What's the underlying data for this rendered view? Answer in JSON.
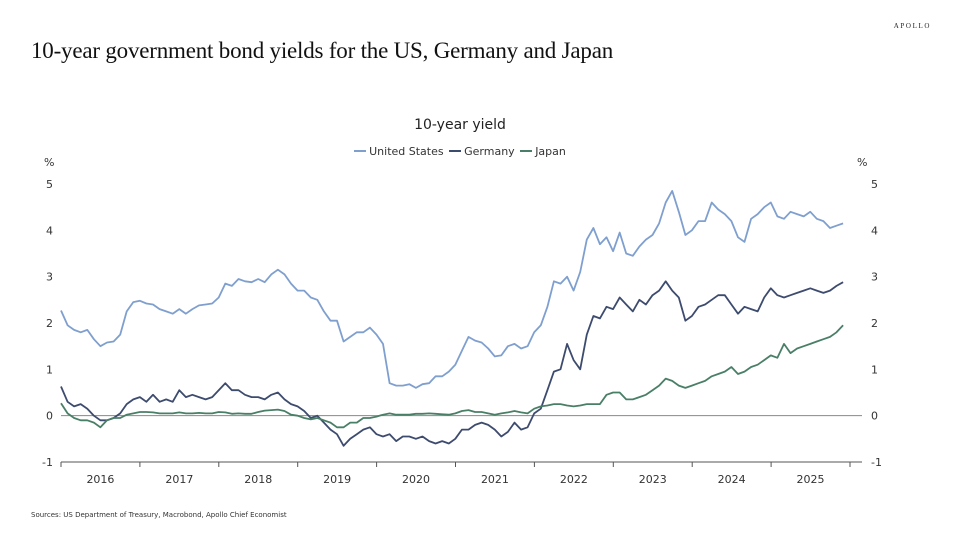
{
  "brand": "APOLLO",
  "title": "10-year government bond yields for the US, Germany and Japan",
  "source": "Sources: US Department of Treasury, Macrobond, Apollo Chief Economist",
  "chart_data": {
    "type": "line",
    "title": "10-year yield",
    "ylabel_left": "%",
    "ylabel_right": "%",
    "xlabel": "",
    "ylim": [
      -1,
      5
    ],
    "xlim": [
      2016.0,
      2026.0
    ],
    "yticks": [
      -1,
      0,
      1,
      2,
      3,
      4,
      5
    ],
    "xtick_labels": [
      "2016",
      "2017",
      "2018",
      "2019",
      "2020",
      "2021",
      "2022",
      "2023",
      "2024",
      "2025"
    ],
    "grid": false,
    "zero_line": true,
    "legend_position": "top-center",
    "x_frequency": "monthly",
    "x_start": 2016.0,
    "x_step": 0.0833,
    "series": [
      {
        "name": "United States",
        "color": "#7f9fcf",
        "values": [
          2.27,
          1.95,
          1.85,
          1.8,
          1.85,
          1.65,
          1.5,
          1.58,
          1.6,
          1.75,
          2.25,
          2.45,
          2.48,
          2.42,
          2.4,
          2.3,
          2.25,
          2.2,
          2.3,
          2.2,
          2.3,
          2.38,
          2.4,
          2.42,
          2.55,
          2.85,
          2.8,
          2.95,
          2.9,
          2.88,
          2.95,
          2.88,
          3.05,
          3.15,
          3.05,
          2.85,
          2.7,
          2.7,
          2.55,
          2.5,
          2.25,
          2.05,
          2.05,
          1.6,
          1.7,
          1.8,
          1.8,
          1.9,
          1.75,
          1.55,
          0.7,
          0.65,
          0.65,
          0.68,
          0.6,
          0.68,
          0.7,
          0.85,
          0.85,
          0.95,
          1.1,
          1.4,
          1.7,
          1.62,
          1.58,
          1.45,
          1.28,
          1.3,
          1.5,
          1.55,
          1.45,
          1.5,
          1.8,
          1.95,
          2.35,
          2.9,
          2.85,
          3.0,
          2.7,
          3.1,
          3.8,
          4.05,
          3.7,
          3.85,
          3.55,
          3.95,
          3.5,
          3.45,
          3.65,
          3.8,
          3.9,
          4.15,
          4.6,
          4.85,
          4.4,
          3.9,
          4.0,
          4.2,
          4.2,
          4.6,
          4.45,
          4.35,
          4.2,
          3.85,
          3.75,
          4.25,
          4.35,
          4.5,
          4.6,
          4.3,
          4.25,
          4.4,
          4.35,
          4.3,
          4.4,
          4.25,
          4.2,
          4.05,
          4.1,
          4.15
        ]
      },
      {
        "name": "Germany",
        "color": "#3d4b6e",
        "values": [
          0.63,
          0.3,
          0.2,
          0.25,
          0.15,
          0.0,
          -0.1,
          -0.1,
          -0.05,
          0.05,
          0.25,
          0.35,
          0.4,
          0.3,
          0.45,
          0.3,
          0.35,
          0.3,
          0.55,
          0.4,
          0.45,
          0.4,
          0.35,
          0.4,
          0.55,
          0.7,
          0.55,
          0.55,
          0.45,
          0.4,
          0.4,
          0.35,
          0.45,
          0.5,
          0.35,
          0.25,
          0.2,
          0.1,
          -0.05,
          0.0,
          -0.15,
          -0.3,
          -0.4,
          -0.65,
          -0.5,
          -0.4,
          -0.3,
          -0.25,
          -0.4,
          -0.45,
          -0.4,
          -0.55,
          -0.45,
          -0.45,
          -0.5,
          -0.45,
          -0.55,
          -0.6,
          -0.55,
          -0.6,
          -0.5,
          -0.3,
          -0.3,
          -0.2,
          -0.15,
          -0.2,
          -0.3,
          -0.45,
          -0.35,
          -0.15,
          -0.3,
          -0.25,
          0.05,
          0.15,
          0.55,
          0.95,
          1.0,
          1.55,
          1.2,
          1.0,
          1.75,
          2.15,
          2.1,
          2.35,
          2.3,
          2.55,
          2.4,
          2.25,
          2.5,
          2.4,
          2.6,
          2.7,
          2.9,
          2.7,
          2.55,
          2.05,
          2.15,
          2.35,
          2.4,
          2.5,
          2.6,
          2.6,
          2.4,
          2.2,
          2.35,
          2.3,
          2.25,
          2.55,
          2.75,
          2.6,
          2.55,
          2.6,
          2.65,
          2.7,
          2.75,
          2.7,
          2.65,
          2.7,
          2.8,
          2.88
        ]
      },
      {
        "name": "Japan",
        "color": "#4a7f67",
        "values": [
          0.27,
          0.05,
          -0.05,
          -0.1,
          -0.1,
          -0.15,
          -0.25,
          -0.1,
          -0.05,
          -0.05,
          0.02,
          0.05,
          0.08,
          0.08,
          0.07,
          0.05,
          0.05,
          0.05,
          0.07,
          0.05,
          0.05,
          0.06,
          0.05,
          0.05,
          0.08,
          0.07,
          0.04,
          0.05,
          0.04,
          0.04,
          0.08,
          0.11,
          0.12,
          0.13,
          0.1,
          0.02,
          0.0,
          -0.05,
          -0.08,
          -0.05,
          -0.1,
          -0.15,
          -0.25,
          -0.25,
          -0.15,
          -0.15,
          -0.05,
          -0.05,
          -0.02,
          0.02,
          0.05,
          0.02,
          0.02,
          0.02,
          0.04,
          0.04,
          0.05,
          0.04,
          0.03,
          0.02,
          0.05,
          0.1,
          0.12,
          0.08,
          0.08,
          0.05,
          0.02,
          0.05,
          0.07,
          0.1,
          0.07,
          0.05,
          0.15,
          0.2,
          0.22,
          0.25,
          0.25,
          0.22,
          0.2,
          0.22,
          0.25,
          0.25,
          0.25,
          0.45,
          0.5,
          0.5,
          0.35,
          0.35,
          0.4,
          0.45,
          0.55,
          0.65,
          0.8,
          0.75,
          0.65,
          0.6,
          0.65,
          0.7,
          0.75,
          0.85,
          0.9,
          0.95,
          1.05,
          0.9,
          0.95,
          1.05,
          1.1,
          1.2,
          1.3,
          1.25,
          1.55,
          1.35,
          1.45,
          1.5,
          1.55,
          1.6,
          1.65,
          1.7,
          1.8,
          1.95
        ]
      }
    ]
  }
}
